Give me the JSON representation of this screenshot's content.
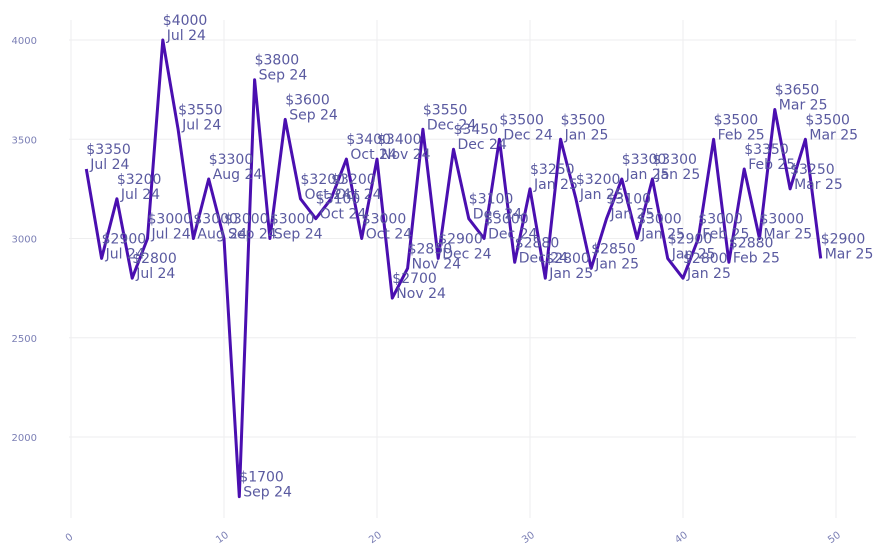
{
  "chart_data": {
    "type": "line",
    "title": "",
    "xlabel": "",
    "ylabel": "",
    "xlim": [
      0,
      50
    ],
    "ylim": [
      1600,
      4100
    ],
    "grid": true,
    "legend": "none",
    "x_ticks": [
      "0",
      "10",
      "20",
      "30",
      "40",
      "50"
    ],
    "y_ticks": [
      "2000",
      "2500",
      "3000",
      "3500",
      "4000"
    ],
    "line_color": "#4a0fb0",
    "text_color": "#5a5aa0",
    "tick_color": "#7b7fb5",
    "grid_color": "#eeeeef",
    "series": [
      {
        "x": [
          1,
          2,
          3,
          4,
          5,
          6,
          7,
          8,
          9,
          10,
          11,
          12,
          13,
          14,
          15,
          16,
          17,
          18,
          19,
          20,
          21,
          22,
          23,
          24,
          25,
          26,
          27,
          28,
          29,
          30,
          31,
          32,
          33,
          34,
          35,
          36,
          37,
          38,
          39,
          40,
          41,
          42,
          43,
          44,
          45,
          46,
          47,
          48,
          49
        ],
        "y": [
          3350,
          2900,
          3200,
          2800,
          3000,
          4000,
          3550,
          3000,
          3300,
          3000,
          1700,
          3800,
          3000,
          3600,
          3200,
          3100,
          3200,
          3400,
          3000,
          3400,
          2700,
          2850,
          3550,
          2900,
          3450,
          3100,
          3000,
          3500,
          2880,
          3250,
          2800,
          3500,
          3200,
          2850,
          3100,
          3300,
          3000,
          3300,
          2900,
          2800,
          3000,
          3500,
          2880,
          3350,
          3000,
          3650,
          3250,
          3500,
          2900
        ],
        "labels": [
          [
            "$3350",
            "Jul 24"
          ],
          [
            "$2900",
            "Jul 24"
          ],
          [
            "$3200",
            "Jul 24"
          ],
          [
            "$2800",
            "Jul 24"
          ],
          [
            "$3000",
            "Jul 24"
          ],
          [
            "$4000",
            "Jul 24"
          ],
          [
            "$3550",
            "Jul 24"
          ],
          [
            "$3000",
            "Aug 24"
          ],
          [
            "$3300",
            "Aug 24"
          ],
          [
            "$3000",
            "Sep 24"
          ],
          [
            "$1700",
            "Sep 24"
          ],
          [
            "$3800",
            "Sep 24"
          ],
          [
            "$3000",
            "Sep 24"
          ],
          [
            "$3600",
            "Sep 24"
          ],
          [
            "$3200",
            "Oct 24"
          ],
          [
            "$3100",
            "Oct 24"
          ],
          [
            "$3200",
            "Oct 24"
          ],
          [
            "$3400",
            "Oct 24"
          ],
          [
            "$3000",
            "Oct 24"
          ],
          [
            "$3400",
            "Nov 24"
          ],
          [
            "$2700",
            "Nov 24"
          ],
          [
            "$2850",
            "Nov 24"
          ],
          [
            "$3550",
            "Dec 24"
          ],
          [
            "$2900",
            "Dec 24"
          ],
          [
            "$3450",
            "Dec 24"
          ],
          [
            "$3100",
            "Dec 24"
          ],
          [
            "$3000",
            "Dec 24"
          ],
          [
            "$3500",
            "Dec 24"
          ],
          [
            "$2880",
            "Dec 24"
          ],
          [
            "$3250",
            "Jan 25"
          ],
          [
            "$2800",
            "Jan 25"
          ],
          [
            "$3500",
            "Jan 25"
          ],
          [
            "$3200",
            "Jan 25"
          ],
          [
            "$2850",
            "Jan 25"
          ],
          [
            "$3100",
            "Jan 25"
          ],
          [
            "$3300",
            "Jan 25"
          ],
          [
            "$3000",
            "Jan 25"
          ],
          [
            "$3300",
            "Jan 25"
          ],
          [
            "$2900",
            "Jan 25"
          ],
          [
            "$2800",
            "Jan 25"
          ],
          [
            "$3000",
            "Feb 25"
          ],
          [
            "$3500",
            "Feb 25"
          ],
          [
            "$2880",
            "Feb 25"
          ],
          [
            "$3350",
            "Feb 25"
          ],
          [
            "$3000",
            "Mar 25"
          ],
          [
            "$3650",
            "Mar 25"
          ],
          [
            "$3250",
            "Mar 25"
          ],
          [
            "$3500",
            "Mar 25"
          ],
          [
            "$2900",
            "Mar 25"
          ]
        ]
      }
    ]
  }
}
